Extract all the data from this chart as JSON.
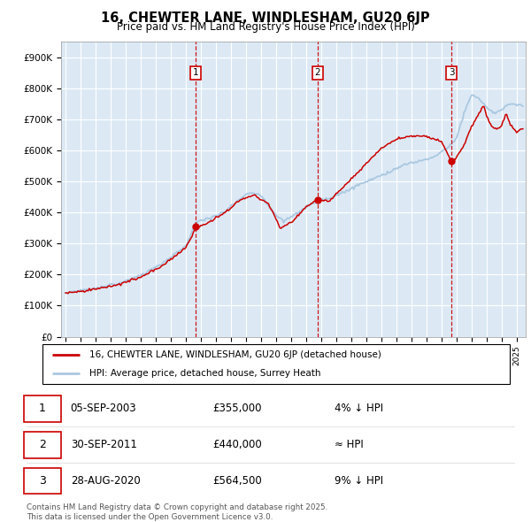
{
  "title": "16, CHEWTER LANE, WINDLESHAM, GU20 6JP",
  "subtitle": "Price paid vs. HM Land Registry's House Price Index (HPI)",
  "ylim": [
    0,
    950000
  ],
  "yticks": [
    0,
    100000,
    200000,
    300000,
    400000,
    500000,
    600000,
    700000,
    800000,
    900000
  ],
  "ytick_labels": [
    "£0",
    "£100K",
    "£200K",
    "£300K",
    "£400K",
    "£500K",
    "£600K",
    "£700K",
    "£800K",
    "£900K"
  ],
  "bg_color": "#dce9f5",
  "fig_bg": "#ffffff",
  "grid_color": "#ffffff",
  "sale_color": "#cc0000",
  "hpi_color": "#aac8e0",
  "sale_line_label": "16, CHEWTER LANE, WINDLESHAM, GU20 6JP (detached house)",
  "hpi_line_label": "HPI: Average price, detached house, Surrey Heath",
  "transactions": [
    {
      "num": 1,
      "date": "05-SEP-2003",
      "price": 355000,
      "relation": "4% ↓ HPI",
      "x": 2003.67
    },
    {
      "num": 2,
      "date": "30-SEP-2011",
      "price": 440000,
      "relation": "≈ HPI",
      "x": 2011.75
    },
    {
      "num": 3,
      "date": "28-AUG-2020",
      "price": 564500,
      "relation": "9% ↓ HPI",
      "x": 2020.67
    }
  ],
  "footer": "Contains HM Land Registry data © Crown copyright and database right 2025.\nThis data is licensed under the Open Government Licence v3.0.",
  "xstart": 1995,
  "xend": 2025
}
